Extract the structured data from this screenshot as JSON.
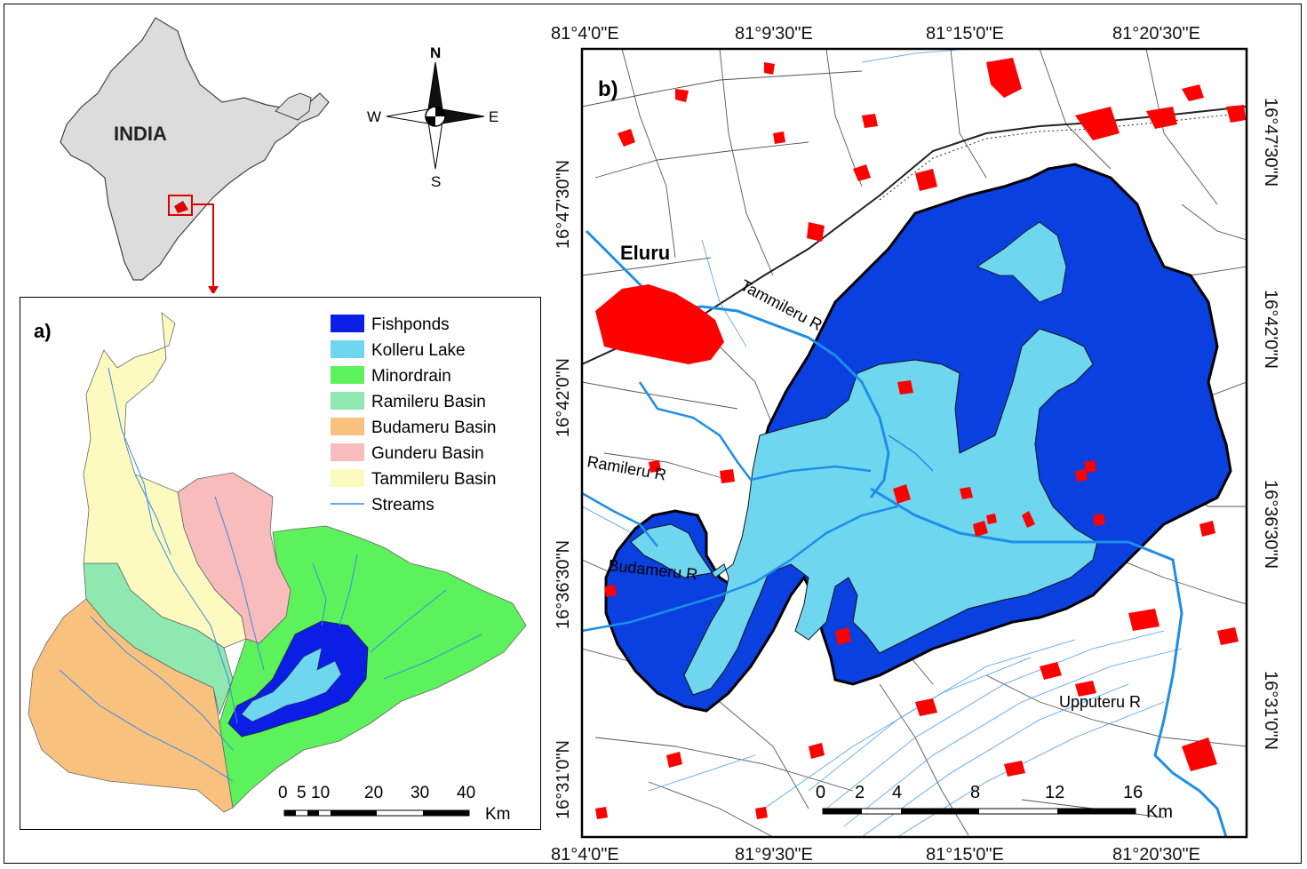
{
  "india_map": {
    "label": "INDIA"
  },
  "compass": {
    "n": "N",
    "s": "S",
    "e": "E",
    "w": "W"
  },
  "panel_a": {
    "label": "a)",
    "legend": [
      {
        "label": "Fishponds",
        "color": "#0a1ee6",
        "kind": "box"
      },
      {
        "label": "Kolleru Lake",
        "color": "#6fd6f0",
        "kind": "box"
      },
      {
        "label": "Minordrain",
        "color": "#5cf25c",
        "kind": "box"
      },
      {
        "label": "Ramileru Basin",
        "color": "#8ee8b0",
        "kind": "box"
      },
      {
        "label": "Budameru Basin",
        "color": "#f8c27e",
        "kind": "box"
      },
      {
        "label": "Gunderu Basin",
        "color": "#f8bcbc",
        "kind": "box"
      },
      {
        "label": "Tammileru Basin",
        "color": "#fdfac0",
        "kind": "box"
      },
      {
        "label": "Streams",
        "color": "#3a8ae6",
        "kind": "line"
      }
    ],
    "scale": {
      "ticks": [
        "0",
        "5",
        "10",
        "20",
        "30",
        "40"
      ],
      "unit": "Km"
    }
  },
  "panel_b": {
    "label": "b)",
    "lon_labels": [
      "81°4'0\"E",
      "81°9'30\"E",
      "81°15'0\"E",
      "81°20'30\"E"
    ],
    "lat_labels": [
      "16°47'30\"N",
      "16°42'0\"N",
      "16°36'30\"N",
      "16°31'0\"N"
    ],
    "place_labels": {
      "city": "Eluru",
      "tammileru": "Tammileru R",
      "ramileru": "Ramileru R",
      "budameru": "Budameru R",
      "upputeru": "Upputeru R"
    },
    "scale": {
      "ticks": [
        "0",
        "2",
        "4",
        "8",
        "12",
        "16"
      ],
      "unit": "Km"
    },
    "colors": {
      "fishpond": "#0a3fe0",
      "lake": "#6fd6f0",
      "river": "#1e8ee8",
      "settlement": "#ff0000"
    }
  }
}
